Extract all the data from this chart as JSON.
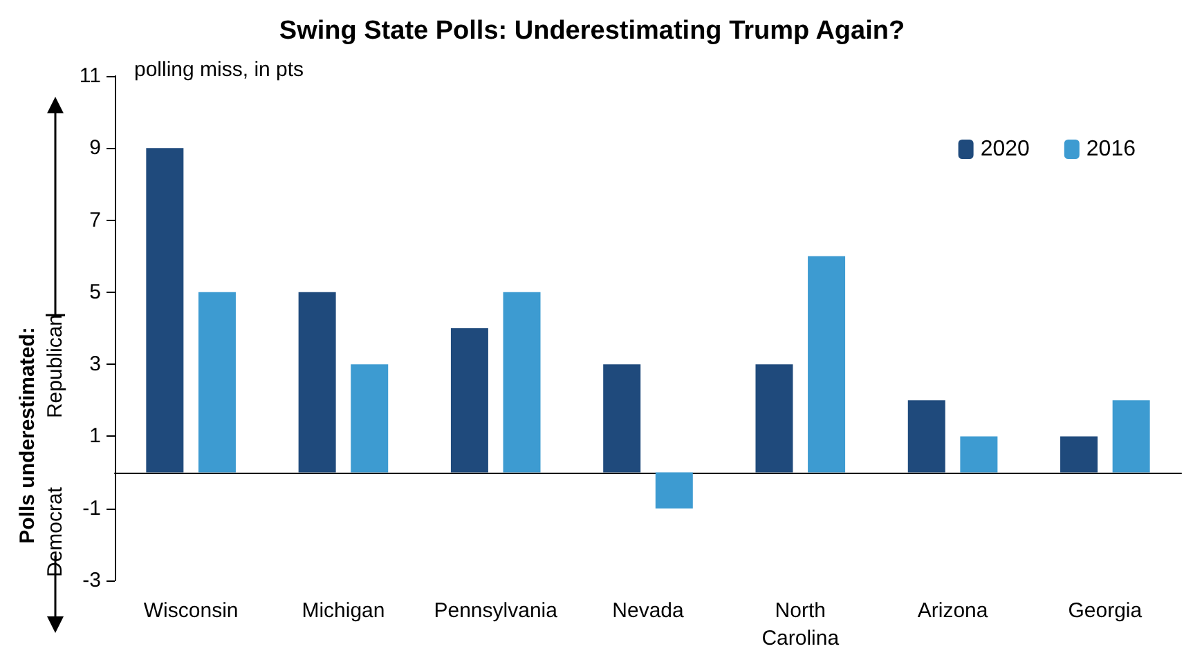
{
  "chart_data": {
    "type": "bar",
    "title": "Swing State Polls: Underestimating Trump Again?",
    "ylabel": "polling miss, in pts",
    "categories": [
      "Wisconsin",
      "Michigan",
      "Pennsylvania",
      "Nevada",
      "North Carolina",
      "Arizona",
      "Georgia"
    ],
    "series": [
      {
        "name": "2020",
        "color": "#1f4a7c",
        "values": [
          9,
          5,
          4,
          3,
          3,
          2,
          1
        ]
      },
      {
        "name": "2016",
        "color": "#3d9bd1",
        "values": [
          5,
          3,
          5,
          -1,
          6,
          1,
          2
        ]
      }
    ],
    "ylim": [
      -3,
      11
    ],
    "yticks": [
      -3,
      -1,
      1,
      3,
      5,
      7,
      9,
      11
    ],
    "grid": false,
    "legend": "top right",
    "annotations": [
      "Polls underestimated:",
      "Republican",
      "Democrat"
    ]
  }
}
